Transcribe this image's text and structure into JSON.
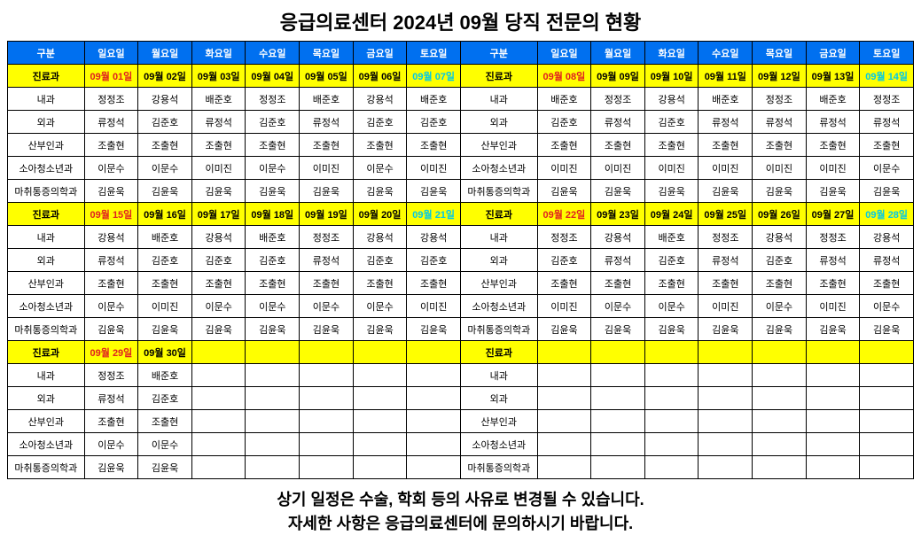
{
  "title": "응급의료센터 2024년 09월 당직 전문의 현황",
  "footer_line1": "상기 일정은 수술, 학회 등의 사유로 변경될 수 있습니다.",
  "footer_line2": "자세한 사항은 응급의료센터에 문의하시기 바랍니다.",
  "colors": {
    "header_bg": "#0070f0",
    "header_fg": "#ffffff",
    "date_bg": "#ffff00",
    "sunday": "#e02020",
    "saturday": "#00c8e8",
    "border": "#000000"
  },
  "days": [
    "구분",
    "일요일",
    "월요일",
    "화요일",
    "수요일",
    "목요일",
    "금요일",
    "토요일"
  ],
  "departments": [
    "내과",
    "외과",
    "산부인과",
    "소아청소년과",
    "마취통증의학과"
  ],
  "dept_label": "진료과",
  "blocks": [
    {
      "dates_left": [
        "09월 01일",
        "09월 02일",
        "09월 03일",
        "09월 04일",
        "09월 05일",
        "09월 06일",
        "09월 07일"
      ],
      "dates_right": [
        "09월 08일",
        "09월 09일",
        "09월 10일",
        "09월 11일",
        "09월 12일",
        "09월 13일",
        "09월 14일"
      ],
      "left": {
        "내과": [
          "정정조",
          "강용석",
          "배준호",
          "정정조",
          "배준호",
          "강용석",
          "배준호"
        ],
        "외과": [
          "류정석",
          "김준호",
          "류정석",
          "김준호",
          "류정석",
          "김준호",
          "김준호"
        ],
        "산부인과": [
          "조출현",
          "조출현",
          "조출현",
          "조출현",
          "조출현",
          "조출현",
          "조출현"
        ],
        "소아청소년과": [
          "이문수",
          "이문수",
          "이미진",
          "이문수",
          "이미진",
          "이문수",
          "이미진"
        ],
        "마취통증의학과": [
          "김윤욱",
          "김윤욱",
          "김윤욱",
          "김윤욱",
          "김윤욱",
          "김윤욱",
          "김윤욱"
        ]
      },
      "right": {
        "내과": [
          "배준호",
          "정정조",
          "강용석",
          "배준호",
          "정정조",
          "배준호",
          "정정조"
        ],
        "외과": [
          "김준호",
          "류정석",
          "김준호",
          "류정석",
          "류정석",
          "류정석",
          "류정석"
        ],
        "산부인과": [
          "조출현",
          "조출현",
          "조출현",
          "조출현",
          "조출현",
          "조출현",
          "조출현"
        ],
        "소아청소년과": [
          "이미진",
          "이미진",
          "이미진",
          "이미진",
          "이미진",
          "이미진",
          "이문수"
        ],
        "마취통증의학과": [
          "김윤욱",
          "김윤욱",
          "김윤욱",
          "김윤욱",
          "김윤욱",
          "김윤욱",
          "김윤욱"
        ]
      }
    },
    {
      "dates_left": [
        "09월 15일",
        "09월 16일",
        "09월 17일",
        "09월 18일",
        "09월 19일",
        "09월 20일",
        "09월 21일"
      ],
      "dates_right": [
        "09월 22일",
        "09월 23일",
        "09월 24일",
        "09월 25일",
        "09월 26일",
        "09월 27일",
        "09월 28일"
      ],
      "left": {
        "내과": [
          "강용석",
          "배준호",
          "강용석",
          "배준호",
          "정정조",
          "강용석",
          "강용석"
        ],
        "외과": [
          "류정석",
          "김준호",
          "김준호",
          "김준호",
          "류정석",
          "김준호",
          "김준호"
        ],
        "산부인과": [
          "조출현",
          "조출현",
          "조출현",
          "조출현",
          "조출현",
          "조출현",
          "조출현"
        ],
        "소아청소년과": [
          "이문수",
          "이미진",
          "이문수",
          "이문수",
          "이문수",
          "이문수",
          "이미진"
        ],
        "마취통증의학과": [
          "김윤욱",
          "김윤욱",
          "김윤욱",
          "김윤욱",
          "김윤욱",
          "김윤욱",
          "김윤욱"
        ]
      },
      "right": {
        "내과": [
          "정정조",
          "강용석",
          "배준호",
          "정정조",
          "강용석",
          "정정조",
          "강용석"
        ],
        "외과": [
          "김준호",
          "류정석",
          "김준호",
          "류정석",
          "김준호",
          "류정석",
          "류정석"
        ],
        "산부인과": [
          "조출현",
          "조출현",
          "조출현",
          "조출현",
          "조출현",
          "조출현",
          "조출현"
        ],
        "소아청소년과": [
          "이미진",
          "이문수",
          "이문수",
          "이미진",
          "이문수",
          "이미진",
          "이문수"
        ],
        "마취통증의학과": [
          "김윤욱",
          "김윤욱",
          "김윤욱",
          "김윤욱",
          "김윤욱",
          "김윤욱",
          "김윤욱"
        ]
      }
    },
    {
      "dates_left": [
        "09월 29일",
        "09월 30일",
        "",
        "",
        "",
        "",
        ""
      ],
      "dates_right": [
        "",
        "",
        "",
        "",
        "",
        "",
        ""
      ],
      "left": {
        "내과": [
          "정정조",
          "배준호",
          "",
          "",
          "",
          "",
          ""
        ],
        "외과": [
          "류정석",
          "김준호",
          "",
          "",
          "",
          "",
          ""
        ],
        "산부인과": [
          "조출현",
          "조출현",
          "",
          "",
          "",
          "",
          ""
        ],
        "소아청소년과": [
          "이문수",
          "이문수",
          "",
          "",
          "",
          "",
          ""
        ],
        "마취통증의학과": [
          "김윤욱",
          "김윤욱",
          "",
          "",
          "",
          "",
          ""
        ]
      },
      "right": {
        "내과": [
          "",
          "",
          "",
          "",
          "",
          "",
          ""
        ],
        "외과": [
          "",
          "",
          "",
          "",
          "",
          "",
          ""
        ],
        "산부인과": [
          "",
          "",
          "",
          "",
          "",
          "",
          ""
        ],
        "소아청소년과": [
          "",
          "",
          "",
          "",
          "",
          "",
          ""
        ],
        "마취통증의학과": [
          "",
          "",
          "",
          "",
          "",
          "",
          ""
        ]
      }
    }
  ]
}
